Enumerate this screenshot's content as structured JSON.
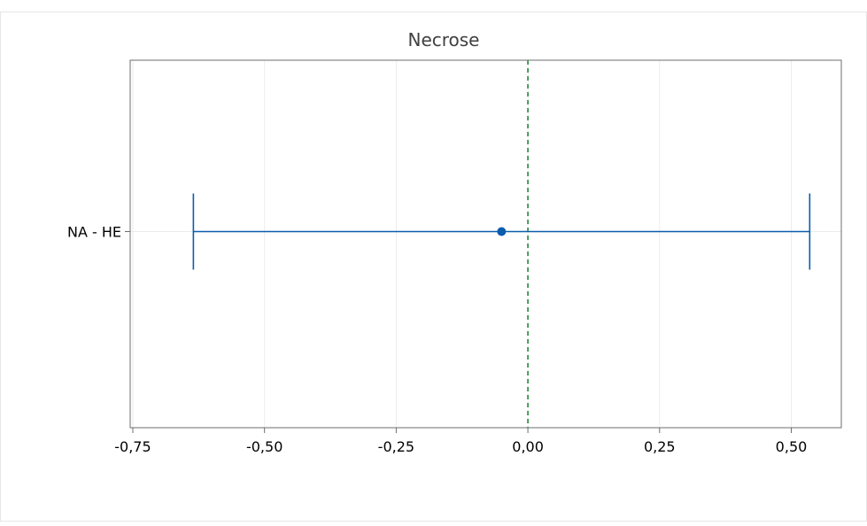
{
  "chart_data": {
    "type": "interval",
    "title": "Necrose",
    "xlabel": "",
    "ylabel": "",
    "categories": [
      "NA - HE"
    ],
    "intervals": [
      {
        "category": "NA - HE",
        "estimate": -0.05,
        "lower": -0.635,
        "upper": 0.535
      }
    ],
    "reference_line": {
      "x": 0,
      "style": "dashed"
    },
    "xlim": [
      -0.755,
      0.595
    ],
    "xticks": [
      -0.75,
      -0.5,
      -0.25,
      0,
      0.25,
      0.5
    ],
    "xtick_labels": [
      "-0,75",
      "-0,50",
      "-0,25",
      "0,00",
      "0,25",
      "0,50"
    ],
    "grid": true,
    "legend": "none"
  },
  "colors": {
    "interval": "#0b5cad",
    "reference": "#1f8a3a",
    "frame": "#6e6e6e",
    "grid": "#ececec",
    "page_border": "#e6e6e6"
  }
}
